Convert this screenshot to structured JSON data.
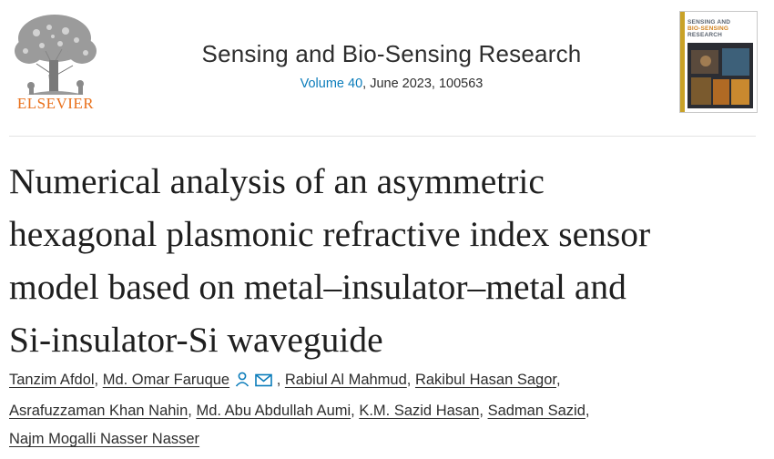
{
  "publisher": {
    "name": "ELSEVIER"
  },
  "journal": {
    "title": "Sensing and Bio-Sensing Research",
    "volume": "Volume 40",
    "details": ", June 2023, 100563"
  },
  "cover": {
    "line1": "SENSING AND",
    "line2": "BIO-SENSING",
    "line3": "RESEARCH"
  },
  "article": {
    "title_lines": [
      "Numerical analysis of an asymmetric",
      "hexagonal plasmonic refractive index sensor",
      "model based on metal–insulator–metal and",
      "Si-insulator-Si waveguide"
    ]
  },
  "authors": [
    "Tanzim Afdol",
    "Md. Omar Faruque",
    "Rabiul Al Mahmud",
    "Rakibul Hasan Sagor",
    "Asrafuzzaman Khan Nahin",
    "Md. Abu Abdullah Aumi",
    "K.M. Sazid Hasan",
    "Sadman Sazid",
    "Najm Mogalli Nasser Nasser"
  ],
  "colors": {
    "link": "#0c7dbb",
    "elsevier_orange": "#e9711c",
    "text": "#2e2e2e"
  },
  "icons": [
    "person-icon",
    "envelope-icon"
  ]
}
